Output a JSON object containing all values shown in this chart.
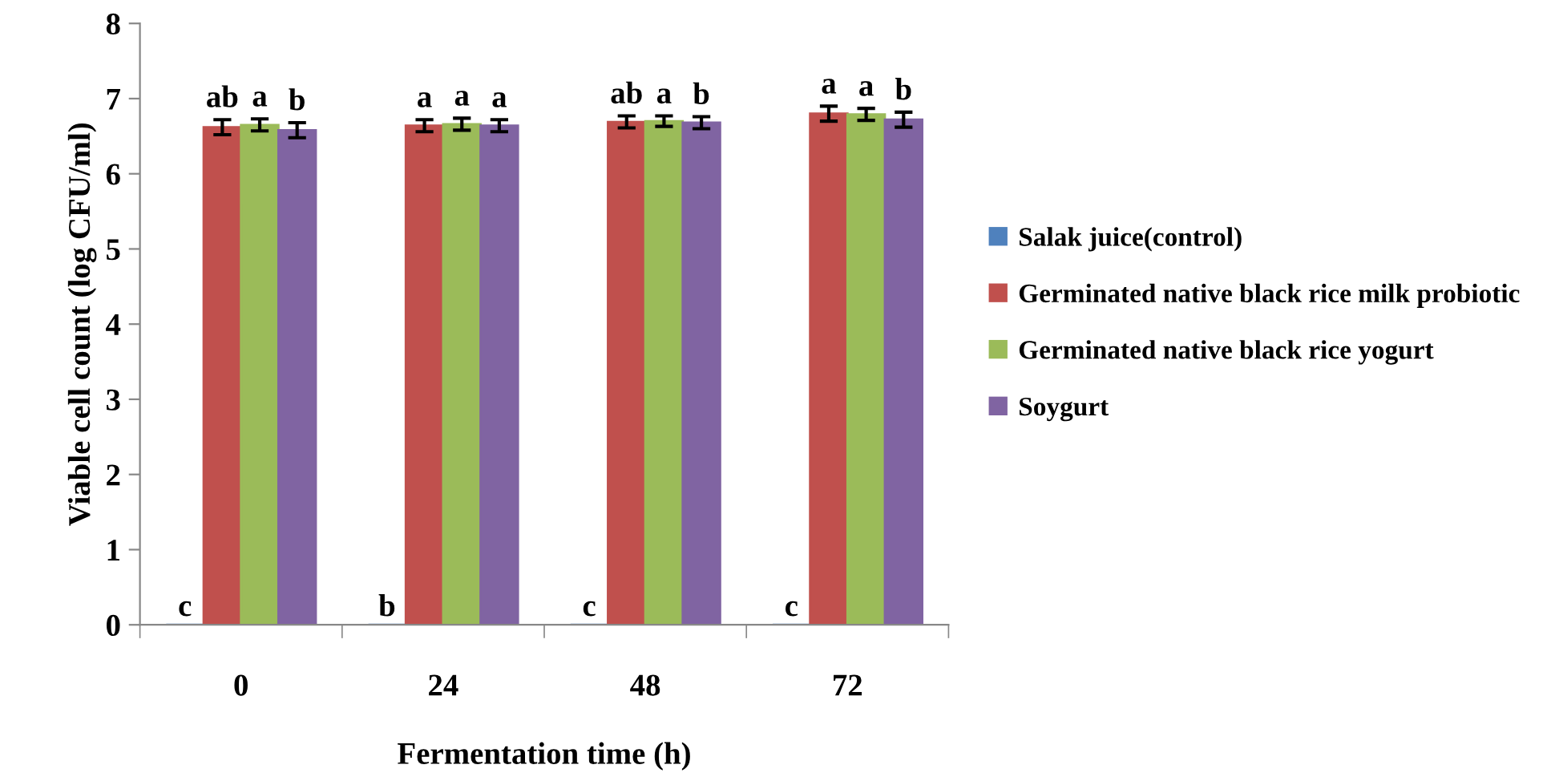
{
  "chart_data": {
    "type": "bar",
    "xlabel": "Fermentation time (h)",
    "ylabel": "Viable cell count (log CFU/ml)",
    "categories": [
      "0",
      "24",
      "48",
      "72"
    ],
    "series": [
      {
        "name": "Salak juice(control)",
        "color": "#4f81bd",
        "values": [
          0,
          0,
          0,
          0
        ],
        "value_labels": [
          "c",
          "b",
          "c",
          "c"
        ]
      },
      {
        "name": "Germinated native black rice milk probiotic",
        "color": "#c0504d",
        "values": [
          6.62,
          6.64,
          6.69,
          6.8
        ],
        "errors": [
          0.1,
          0.08,
          0.08,
          0.1
        ],
        "value_labels": [
          "ab",
          "a",
          "ab",
          "a"
        ]
      },
      {
        "name": "Germinated native black rice yogurt",
        "color": "#9bbb59",
        "values": [
          6.65,
          6.66,
          6.7,
          6.79
        ],
        "errors": [
          0.08,
          0.08,
          0.07,
          0.08
        ],
        "value_labels": [
          "a",
          "a",
          "a",
          "a"
        ]
      },
      {
        "name": "Soygurt",
        "color": "#8064a2",
        "values": [
          6.58,
          6.64,
          6.68,
          6.72
        ],
        "errors": [
          0.1,
          0.08,
          0.08,
          0.1
        ],
        "value_labels": [
          "b",
          "a",
          "b",
          "b"
        ]
      }
    ],
    "ylim": [
      0,
      8
    ],
    "yticks": [
      0,
      1,
      2,
      3,
      4,
      5,
      6,
      7,
      8
    ],
    "grid": false,
    "legend": "right"
  }
}
